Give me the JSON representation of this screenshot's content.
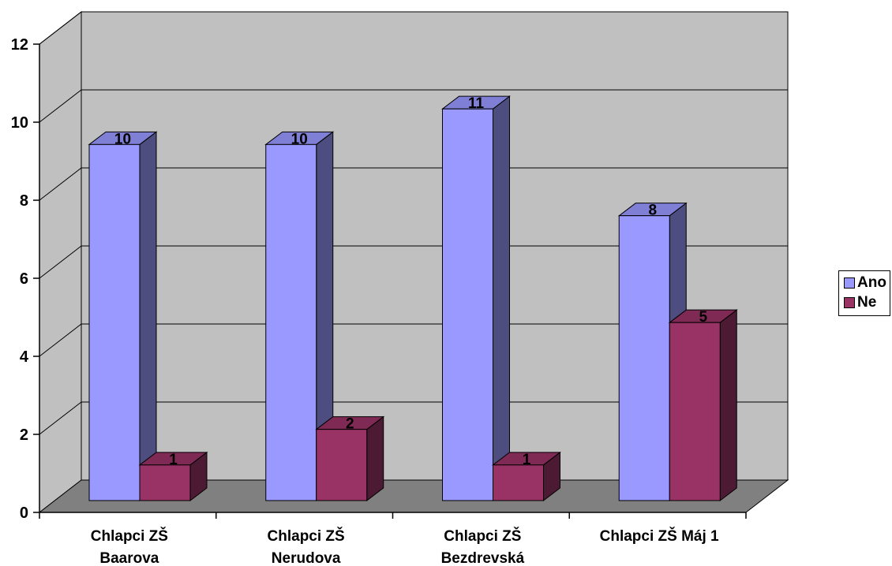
{
  "chart_data": {
    "type": "bar",
    "title": "",
    "xlabel": "",
    "ylabel": "",
    "categories": [
      [
        "Chlapci ZŠ",
        "Baarova"
      ],
      [
        "Chlapci ZŠ",
        "Nerudova"
      ],
      [
        "Chlapci ZŠ",
        "Bezdrevská"
      ],
      [
        "Chlapci ZŠ Máj 1"
      ]
    ],
    "series": [
      {
        "name": "Ano",
        "values": [
          10,
          10,
          11,
          8
        ]
      },
      {
        "name": "Ne",
        "values": [
          1,
          2,
          1,
          5
        ]
      }
    ],
    "yticks": [
      "0",
      "2",
      "4",
      "6",
      "8",
      "10",
      "12"
    ],
    "ylim": [
      0,
      12
    ],
    "grid": true,
    "legend_position": "right",
    "style": "3d-clustered-column"
  },
  "colors": {
    "wall": "#c0c0c0",
    "floor": "#808080",
    "ano_front": "#9999ff",
    "ano_side": "#4d4d80",
    "ano_top": "#7f7fd5",
    "ne_front": "#993366",
    "ne_side": "#4d1a33",
    "ne_top": "#7f2a55"
  }
}
